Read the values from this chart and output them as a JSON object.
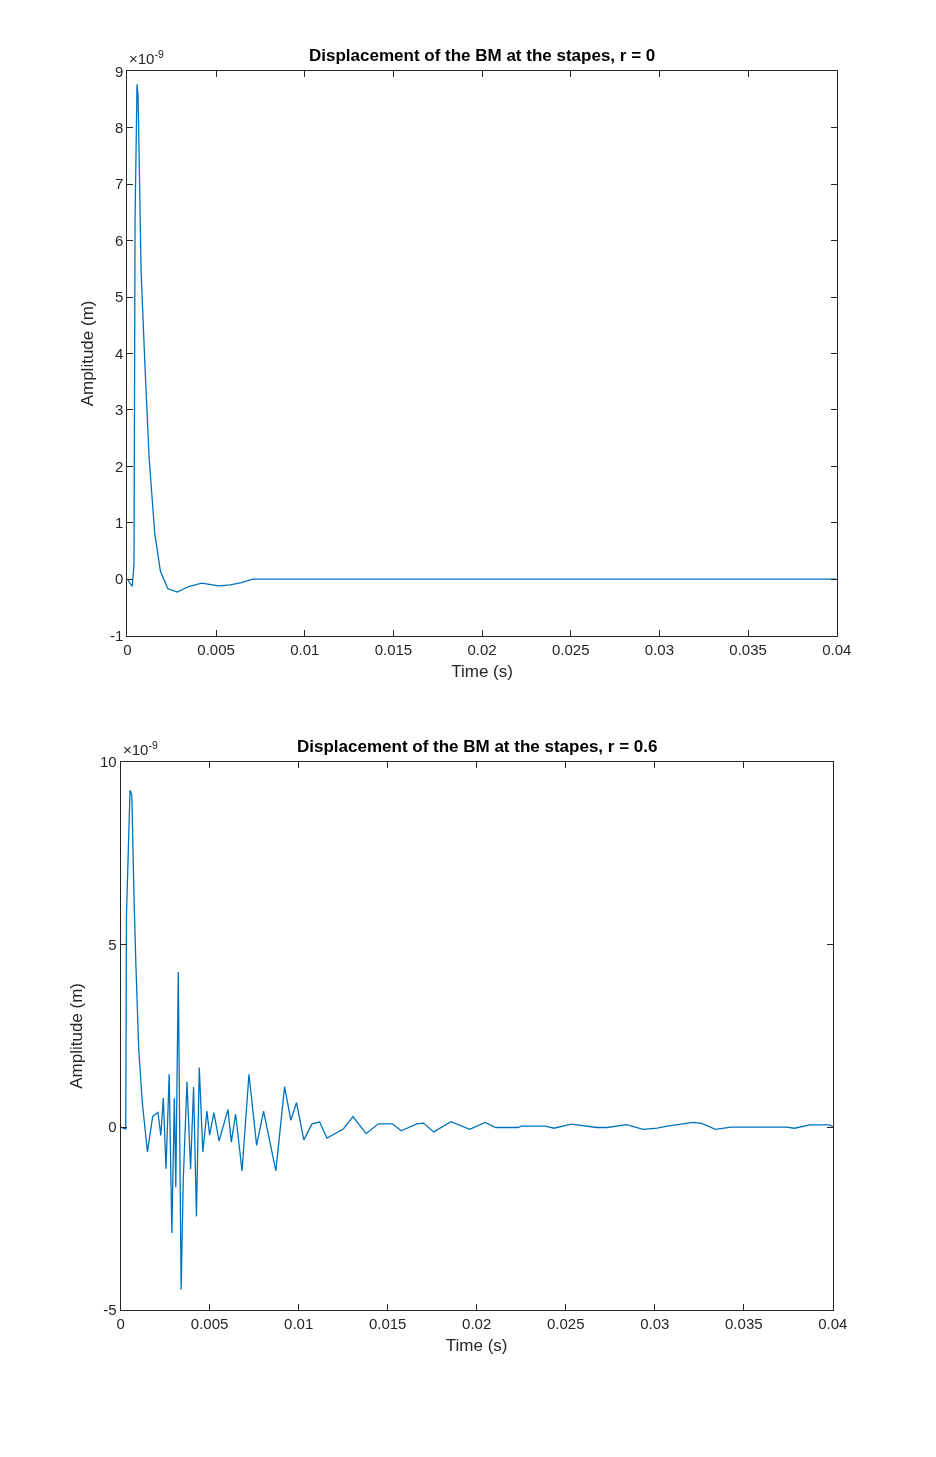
{
  "chart_data": [
    {
      "type": "line",
      "title": "Displacement of the BM at the stapes, r = 0",
      "xlabel": "Time (s)",
      "ylabel": "Amplitude (m)",
      "annotations": [
        "×10$^{-9}$"
      ],
      "x": [
        0,
        0.00027,
        0.00037,
        0.00043,
        0.00054,
        0.0006,
        0.00077,
        0.00098,
        0.00122,
        0.00154,
        0.00186,
        0.00228,
        0.00281,
        0.00345,
        0.00419,
        0.00515,
        0.00579,
        0.00643,
        0.00706,
        0.04
      ],
      "series": [
        {
          "color": "#0072bd",
          "values": [
            0,
            -0.13,
            0.27,
            6.4,
            8.77,
            8.55,
            5.46,
            3.84,
            2.16,
            0.81,
            0.14,
            -0.17,
            -0.23,
            -0.13,
            -0.07,
            -0.12,
            -0.1,
            -0.06,
            0,
            0
          ]
        }
      ],
      "xlim": [
        0,
        0.04
      ],
      "xticks": [
        0,
        0.005,
        0.01,
        0.015,
        0.02,
        0.025,
        0.03,
        0.035,
        0.04
      ],
      "ylim": [
        -1,
        9
      ],
      "yticks": [
        -1,
        0,
        1,
        2,
        3,
        4,
        5,
        6,
        7,
        8,
        9
      ],
      "marker": "none",
      "line_style": "solid"
    },
    {
      "type": "line",
      "title": "Displacement of the BM at the stapes, r = 0.6",
      "xlabel": "Time (s)",
      "ylabel": "Amplitude (m)",
      "annotations": [
        "×10$^{-9}$"
      ],
      "x": [
        0,
        0.00029,
        0.00033,
        0.00053,
        0.00063,
        0.00076,
        0.00086,
        0.00102,
        0.00122,
        0.00151,
        0.0018,
        0.0021,
        0.00226,
        0.0024,
        0.00255,
        0.00273,
        0.00288,
        0.00302,
        0.0031,
        0.00324,
        0.0034,
        0.00352,
        0.00373,
        0.00393,
        0.0041,
        0.00426,
        0.00442,
        0.00462,
        0.00485,
        0.005,
        0.00524,
        0.00553,
        0.00603,
        0.00622,
        0.00646,
        0.00682,
        0.00721,
        0.00764,
        0.00803,
        0.00872,
        0.00921,
        0.00956,
        0.00988,
        0.01029,
        0.01075,
        0.01118,
        0.01159,
        0.01251,
        0.01305,
        0.01379,
        0.01448,
        0.01526,
        0.01576,
        0.01664,
        0.01701,
        0.01759,
        0.01855,
        0.01961,
        0.02048,
        0.02106,
        0.02232,
        0.0225,
        0.02386,
        0.02434,
        0.0253,
        0.02676,
        0.02733,
        0.0284,
        0.02936,
        0.03013,
        0.03071,
        0.03216,
        0.03264,
        0.03341,
        0.03428,
        0.03737,
        0.03785,
        0.03872,
        0.03978,
        0.04
      ],
      "series": [
        {
          "color": "#0072bd",
          "values": [
            0,
            -0.05,
            5.8,
            9.23,
            9.09,
            6.18,
            4.45,
            2.12,
            0.67,
            -0.68,
            0.29,
            0.4,
            -0.23,
            0.8,
            -1.14,
            1.45,
            -2.9,
            0.8,
            -1.65,
            4.25,
            -4.45,
            -1.45,
            1.24,
            -1.15,
            1.1,
            -2.45,
            1.63,
            -0.68,
            0.44,
            -0.22,
            0.4,
            -0.38,
            0.48,
            -0.41,
            0.36,
            -1.2,
            1.45,
            -0.5,
            0.44,
            -1.2,
            1.11,
            0.19,
            0.67,
            -0.35,
            0.09,
            0.14,
            -0.3,
            -0.05,
            0.29,
            -0.18,
            0.09,
            0.09,
            -0.1,
            0.09,
            0.11,
            -0.13,
            0.15,
            -0.06,
            0.13,
            -0.01,
            -0.01,
            0.03,
            0.03,
            -0.03,
            0.08,
            -0.01,
            -0.01,
            0.07,
            -0.06,
            -0.03,
            0.03,
            0.13,
            0.1,
            -0.06,
            0,
            0,
            -0.03,
            0.06,
            0.06,
            0.02
          ]
        }
      ],
      "xlim": [
        0,
        0.04
      ],
      "xticks": [
        0,
        0.005,
        0.01,
        0.015,
        0.02,
        0.025,
        0.03,
        0.035,
        0.04
      ],
      "ylim": [
        -5,
        10
      ],
      "yticks": [
        -5,
        0,
        5,
        10
      ],
      "marker": "none",
      "line_style": "solid"
    }
  ]
}
